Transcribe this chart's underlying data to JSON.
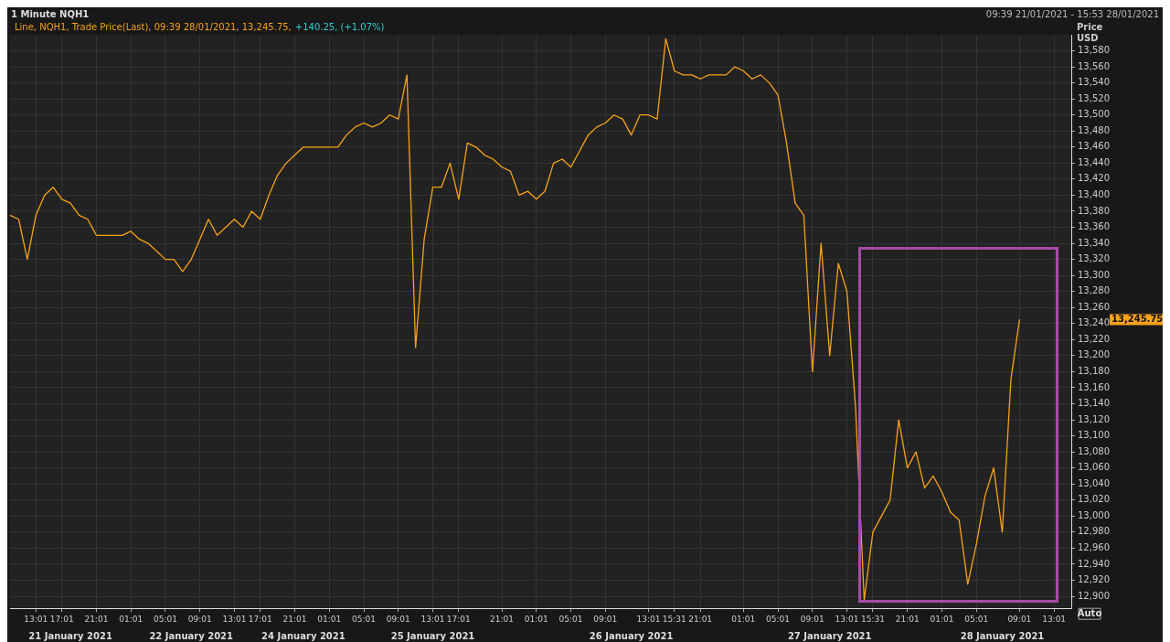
{
  "chart_data": {
    "type": "line",
    "title": "1 Minute NQH1",
    "subtitle": "Line, NQH1, Trade Price(Last), 09:39 28/01/2021, 13,245.75,",
    "ylabel": "Price USD",
    "annotations": [
      "+140.25, (+1.07%)",
      "09:39 21/01/2021 - 15:53 28/01/2021",
      "Auto",
      "13,245.75",
      "21 January 2021",
      "22 January 2021",
      "24 January 2021",
      "25 January 2021",
      "26 January 2021",
      "27 January 2021",
      "28 January 2021"
    ],
    "categories": [
      null,
      null,
      null,
      "13:01",
      null,
      null,
      "17:01",
      null,
      null,
      null,
      "21:01",
      null,
      null,
      null,
      "01:01",
      null,
      null,
      null,
      "05:01",
      null,
      null,
      null,
      "09:01",
      null,
      null,
      null,
      "13:01",
      null,
      null,
      "17:01",
      null,
      null,
      null,
      "21:01",
      null,
      null,
      null,
      "01:01",
      null,
      null,
      null,
      "05:01",
      null,
      null,
      null,
      "09:01",
      null,
      null,
      null,
      "13:01",
      null,
      null,
      "17:01",
      null,
      null,
      null,
      null,
      "21:01",
      null,
      null,
      null,
      "01:01",
      null,
      null,
      null,
      "05:01",
      null,
      null,
      null,
      "09:01",
      null,
      null,
      null,
      null,
      "13:01",
      null,
      null,
      "15:31",
      null,
      null,
      "21:01",
      null,
      null,
      null,
      null,
      "01:01",
      null,
      null,
      null,
      "05:01",
      null,
      null,
      null,
      "09:01",
      null,
      null,
      null,
      "13:01",
      null,
      null,
      "15:31",
      null,
      null,
      null,
      "21:01",
      null,
      null,
      null,
      "01:01",
      null,
      null,
      null,
      "05:01",
      null,
      null,
      null,
      null,
      "09:01",
      null,
      null,
      null,
      "13:01",
      null,
      null
    ],
    "values": [
      13375,
      13370,
      13320,
      13375,
      13400,
      13410,
      13395,
      13390,
      13375,
      13370,
      13350,
      13350,
      13350,
      13350,
      13355,
      13345,
      13340,
      13330,
      13320,
      13320,
      13305,
      13320,
      13345,
      13370,
      13350,
      13360,
      13370,
      13360,
      13380,
      13370,
      13400,
      13425,
      13440,
      13450,
      13460,
      13460,
      13460,
      13460,
      13460,
      13475,
      13485,
      13490,
      13485,
      13490,
      13500,
      13495,
      13550,
      13210,
      13345,
      13410,
      13410,
      13440,
      13395,
      13465,
      13460,
      13450,
      13445,
      13435,
      13430,
      13400,
      13405,
      13395,
      13405,
      13440,
      13445,
      13435,
      13455,
      13475,
      13485,
      13490,
      13500,
      13495,
      13475,
      13500,
      13500,
      13495,
      13595,
      13555,
      13550,
      13550,
      13545,
      13550,
      13550,
      13550,
      13560,
      13555,
      13545,
      13550,
      13540,
      13525,
      13465,
      13390,
      13375,
      13180,
      13340,
      13200,
      13315,
      13280,
      13135,
      12895,
      12980,
      13000,
      13020,
      13120,
      13060,
      13080,
      13035,
      13050,
      13030,
      13005,
      12995,
      12915,
      12965,
      13025,
      13060,
      12980,
      13170,
      13245,
      null,
      null,
      null,
      null,
      null,
      null
    ],
    "color": "#f7a21b",
    "ylim": [
      12885,
      13600
    ],
    "yticks": [
      {
        "value": 12900,
        "label": "12,900"
      },
      {
        "value": 12920,
        "label": "12,920"
      },
      {
        "value": 12940,
        "label": "12,940"
      },
      {
        "value": 12960,
        "label": "12,960"
      },
      {
        "value": 12980,
        "label": "12,980"
      },
      {
        "value": 13000,
        "label": "13,000"
      },
      {
        "value": 13020,
        "label": "13,020"
      },
      {
        "value": 13040,
        "label": "13,040"
      },
      {
        "value": 13060,
        "label": "13,060"
      },
      {
        "value": 13080,
        "label": "13,080"
      },
      {
        "value": 13100,
        "label": "13,100"
      },
      {
        "value": 13120,
        "label": "13,120"
      },
      {
        "value": 13140,
        "label": "13,140"
      },
      {
        "value": 13160,
        "label": "13,160"
      },
      {
        "value": 13180,
        "label": "13,180"
      },
      {
        "value": 13200,
        "label": "13,200"
      },
      {
        "value": 13220,
        "label": "13,220"
      },
      {
        "value": 13240,
        "label": "13,240"
      },
      {
        "value": 13260,
        "label": "13,260"
      },
      {
        "value": 13280,
        "label": "13,280"
      },
      {
        "value": 13300,
        "label": "13,300"
      },
      {
        "value": 13320,
        "label": "13,320"
      },
      {
        "value": 13340,
        "label": "13,340"
      },
      {
        "value": 13360,
        "label": "13,360"
      },
      {
        "value": 13380,
        "label": "13,380"
      },
      {
        "value": 13400,
        "label": "13,400"
      },
      {
        "value": 13420,
        "label": "13,420"
      },
      {
        "value": 13440,
        "label": "13,440"
      },
      {
        "value": 13460,
        "label": "13,460"
      },
      {
        "value": 13480,
        "label": "13,480"
      },
      {
        "value": 13500,
        "label": "13,500"
      },
      {
        "value": 13520,
        "label": "13,520"
      },
      {
        "value": 13540,
        "label": "13,540"
      },
      {
        "value": 13560,
        "label": "13,560"
      },
      {
        "value": 13580,
        "label": "13,580"
      }
    ],
    "grid": true,
    "legend": false
  }
}
